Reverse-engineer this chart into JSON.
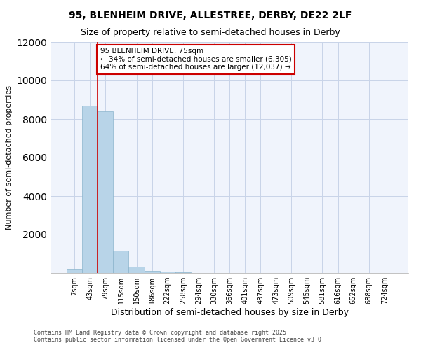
{
  "title_line1": "95, BLENHEIM DRIVE, ALLESTREE, DERBY, DE22 2LF",
  "title_line2": "Size of property relative to semi-detached houses in Derby",
  "xlabel": "Distribution of semi-detached houses by size in Derby",
  "ylabel": "Number of semi-detached properties",
  "annotation_title": "95 BLENHEIM DRIVE: 75sqm",
  "annotation_line2": "← 34% of semi-detached houses are smaller (6,305)",
  "annotation_line3": "64% of semi-detached houses are larger (12,037) →",
  "footer_line1": "Contains HM Land Registry data © Crown copyright and database right 2025.",
  "footer_line2": "Contains public sector information licensed under the Open Government Licence v3.0.",
  "bar_color": "#b8d4e8",
  "bar_edge_color": "#8ab4cc",
  "vline_color": "#cc0000",
  "annotation_box_edgecolor": "#cc0000",
  "background_color": "#ffffff",
  "plot_bg_color": "#f0f4fc",
  "grid_color": "#c8d4e8",
  "categories": [
    "7sqm",
    "43sqm",
    "79sqm",
    "115sqm",
    "150sqm",
    "186sqm",
    "222sqm",
    "258sqm",
    "294sqm",
    "330sqm",
    "366sqm",
    "401sqm",
    "437sqm",
    "473sqm",
    "509sqm",
    "545sqm",
    "581sqm",
    "616sqm",
    "652sqm",
    "688sqm",
    "724sqm"
  ],
  "values": [
    200,
    8700,
    8400,
    1150,
    330,
    110,
    80,
    30,
    0,
    0,
    0,
    0,
    0,
    0,
    0,
    0,
    0,
    0,
    0,
    0,
    0
  ],
  "ylim": [
    0,
    12000
  ],
  "yticks": [
    0,
    2000,
    4000,
    6000,
    8000,
    10000,
    12000
  ],
  "vline_x_index": 2
}
